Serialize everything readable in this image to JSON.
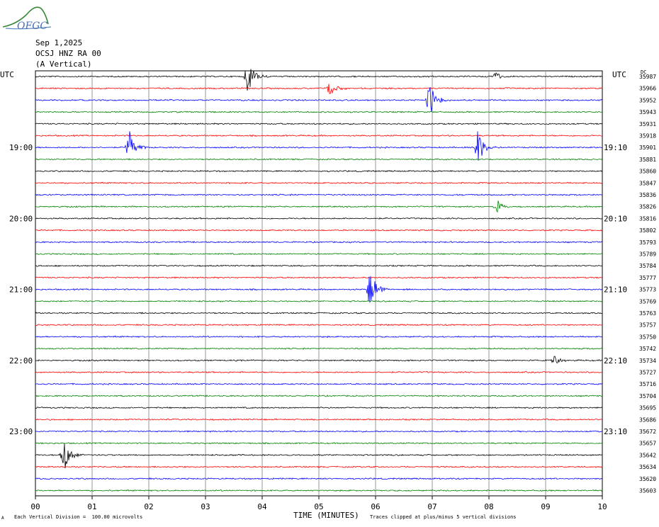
{
  "logo": {
    "text": "OFGC",
    "icon": "ofgc-logo-icon"
  },
  "header": {
    "date": "Sep 1,2025",
    "station": "OCSJ HNZ RA 00",
    "component": "(A Vertical)"
  },
  "left_tz_label": "UTC",
  "right_tz_label": "UTC",
  "dc_label": "DC",
  "footer": {
    "xlabel": "TIME (MINUTES)",
    "scale_note": "Each Vertical Division =  100.00 microvolts",
    "clip_note": "Traces clipped at plus/minus 5 vertical divisions",
    "corner_mark": "A"
  },
  "colors": {
    "black": "#000000",
    "red": "#ff0000",
    "blue": "#0000ff",
    "green": "#008000",
    "grid": "#999999"
  },
  "chart_data": {
    "type": "line",
    "title": "",
    "xlabel": "TIME (MINUTES)",
    "xlim": [
      0,
      10
    ],
    "x_ticks": [
      "00",
      "01",
      "02",
      "03",
      "04",
      "05",
      "06",
      "07",
      "08",
      "09",
      "10"
    ],
    "trace_color_cycle": [
      "black",
      "red",
      "blue",
      "green"
    ],
    "left_hour_labels": [
      {
        "trace": 6,
        "text": "19:00"
      },
      {
        "trace": 12,
        "text": "20:00"
      },
      {
        "trace": 18,
        "text": "21:00"
      },
      {
        "trace": 24,
        "text": "22:00"
      },
      {
        "trace": 30,
        "text": "23:00"
      }
    ],
    "right_hour_labels": [
      {
        "trace": 6,
        "text": "19:10"
      },
      {
        "trace": 12,
        "text": "20:10"
      },
      {
        "trace": 18,
        "text": "21:10"
      },
      {
        "trace": 24,
        "text": "22:10"
      },
      {
        "trace": 30,
        "text": "23:10"
      }
    ],
    "dc_values": [
      "35987",
      "35966",
      "35952",
      "35943",
      "35931",
      "35918",
      "35901",
      "35881",
      "35860",
      "35847",
      "35836",
      "35826",
      "35816",
      "35802",
      "35793",
      "35789",
      "35784",
      "35777",
      "35773",
      "35769",
      "35763",
      "35757",
      "35750",
      "35742",
      "35734",
      "35727",
      "35716",
      "35704",
      "35695",
      "35686",
      "35672",
      "35657",
      "35642",
      "35634",
      "35620",
      "35603"
    ],
    "events": [
      {
        "trace": 0,
        "minute": 3.75,
        "amplitude": 1.0
      },
      {
        "trace": 0,
        "minute": 8.1,
        "amplitude": 0.3
      },
      {
        "trace": 1,
        "minute": 5.2,
        "amplitude": 0.45
      },
      {
        "trace": 2,
        "minute": 6.95,
        "amplitude": 1.0
      },
      {
        "trace": 6,
        "minute": 1.65,
        "amplitude": 1.0
      },
      {
        "trace": 6,
        "minute": 7.8,
        "amplitude": 1.0
      },
      {
        "trace": 11,
        "minute": 8.15,
        "amplitude": 0.35
      },
      {
        "trace": 18,
        "minute": 5.9,
        "amplitude": 1.0
      },
      {
        "trace": 24,
        "minute": 9.15,
        "amplitude": 0.25
      },
      {
        "trace": 32,
        "minute": 0.5,
        "amplitude": 1.0
      }
    ]
  }
}
